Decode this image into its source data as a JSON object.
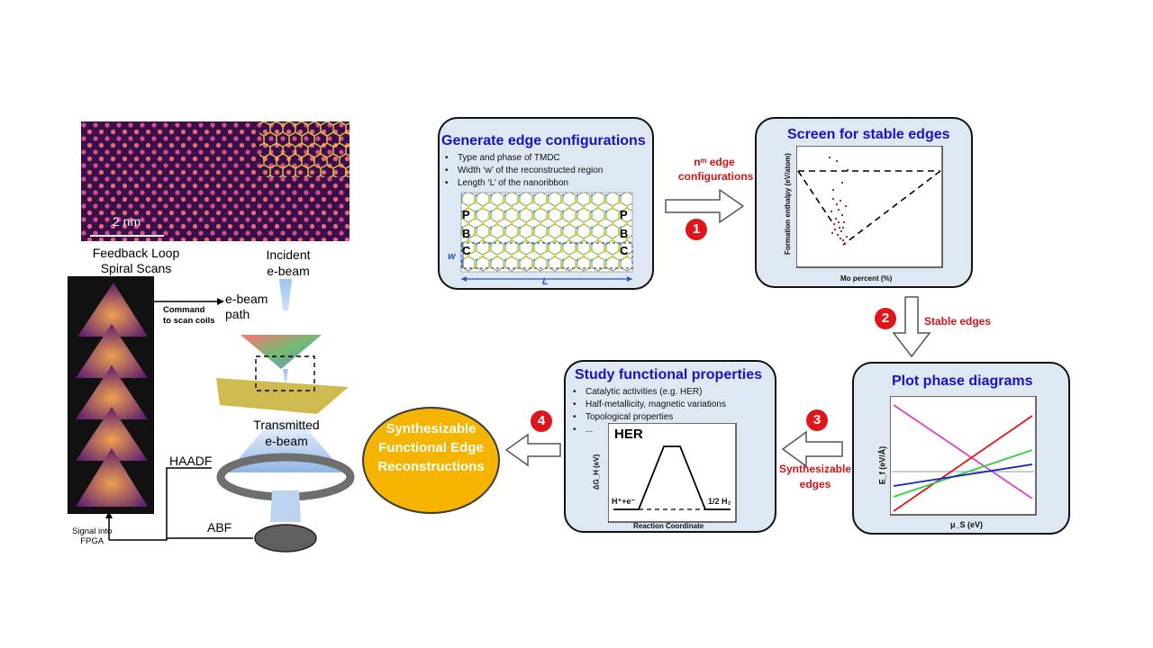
{
  "microscopy": {
    "scale_bar": "2 nm",
    "feedback_title": "Feedback Loop\nSpiral Scans",
    "incident_label": "Incident\ne-beam",
    "command_label": "Command\nto scan coils",
    "ebeam_path_label": "e-beam\npath",
    "transmitted_label": "Transmitted\ne-beam",
    "haadf_label": "HAADF",
    "abf_label": "ABF",
    "signal_label": "Signal into\nFPGA"
  },
  "generate": {
    "title": "Generate edge configurations",
    "bullets": [
      "Type and phase of TMDC",
      "Width ‘w’ of the reconstructed region",
      "Length ‘L’ of the nanoribbon"
    ],
    "row_letters_left": [
      "P",
      "B",
      "C"
    ],
    "row_letters_right": [
      "P",
      "B",
      "C"
    ],
    "width_label": "w",
    "length_label": "L"
  },
  "screen": {
    "title": "Screen for stable edges",
    "ylabel": "Formation enthalpy (eV/atom)",
    "xlabel": "Mo percent (%)"
  },
  "phase": {
    "title": "Plot phase diagrams",
    "ylabel": "E_f (eV/Å)",
    "xlabel": "μ_S (eV)"
  },
  "functional": {
    "title": "Study functional properties",
    "bullets": [
      "Catalytic activities (e.g. HER)",
      "Half-metallicity, magnetic variations",
      "Topological properties",
      "..."
    ],
    "her_title": "HER",
    "her_ylabel": "ΔG_H (eV)",
    "her_left": "H⁺+e⁻",
    "her_right": "1/2 H₂",
    "her_xlabel": "Reaction Coordinate"
  },
  "result": {
    "label": "Synthesizable\nFunctional Edge\nReconstructions"
  },
  "steps": {
    "s1_label": "nᵐ edge\nconfigurations",
    "s2_label": "Stable edges",
    "s3_label": "Synthesizable\nedges",
    "badges": [
      "1",
      "2",
      "3",
      "4"
    ]
  },
  "colors": {
    "panel_bg": "#dde8f3",
    "title_blue": "#1a10c8",
    "step_red": "#e0141b",
    "result_fill": "#f5b400"
  }
}
